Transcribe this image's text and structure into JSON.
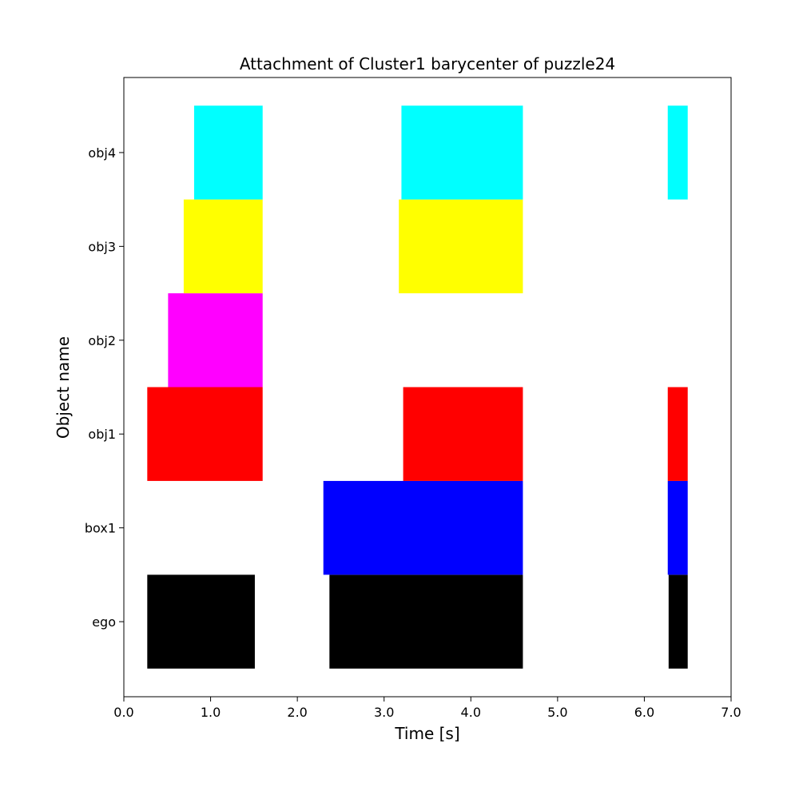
{
  "chart_data": {
    "type": "bar",
    "orientation": "horizontal-timeline",
    "title": "Attachment of Cluster1 barycenter of puzzle24",
    "xlabel": "Time [s]",
    "ylabel": "Object name",
    "xlim": [
      0.0,
      7.0
    ],
    "xticks": [
      "0.0",
      "1.0",
      "2.0",
      "3.0",
      "4.0",
      "5.0",
      "6.0",
      "7.0"
    ],
    "xtick_values": [
      0,
      1,
      2,
      3,
      4,
      5,
      6,
      7
    ],
    "categories": [
      "ego",
      "box1",
      "obj1",
      "obj2",
      "obj3",
      "obj4"
    ],
    "grid": false,
    "series": [
      {
        "category": "ego",
        "color": "#000000",
        "intervals": [
          [
            0.27,
            1.51
          ],
          [
            2.37,
            4.6
          ],
          [
            6.28,
            6.5
          ]
        ]
      },
      {
        "category": "box1",
        "color": "#0000ff",
        "intervals": [
          [
            2.3,
            4.6
          ],
          [
            6.27,
            6.5
          ]
        ]
      },
      {
        "category": "obj1",
        "color": "#ff0000",
        "intervals": [
          [
            0.27,
            1.6
          ],
          [
            3.22,
            4.6
          ],
          [
            6.27,
            6.5
          ]
        ]
      },
      {
        "category": "obj2",
        "color": "#ff00ff",
        "intervals": [
          [
            0.51,
            1.6
          ]
        ]
      },
      {
        "category": "obj3",
        "color": "#ffff00",
        "intervals": [
          [
            0.69,
            1.6
          ],
          [
            3.17,
            4.6
          ]
        ]
      },
      {
        "category": "obj4",
        "color": "#00ffff",
        "intervals": [
          [
            0.81,
            1.6
          ],
          [
            3.2,
            4.6
          ],
          [
            6.27,
            6.5
          ]
        ]
      }
    ]
  }
}
